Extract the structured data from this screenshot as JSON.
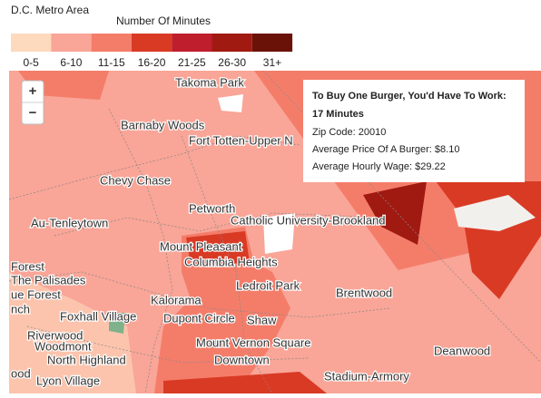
{
  "header": {
    "title": "D.C. Metro Area"
  },
  "legend": {
    "title": "Number Of Minutes",
    "bins": [
      {
        "label": "0-5",
        "color": "#fdd9bd"
      },
      {
        "label": "6-10",
        "color": "#f9a597"
      },
      {
        "label": "11-15",
        "color": "#f47d6a"
      },
      {
        "label": "16-20",
        "color": "#d93a24"
      },
      {
        "label": "21-25",
        "color": "#bf1e2d"
      },
      {
        "label": "26-30",
        "color": "#a11a12"
      },
      {
        "label": "31+",
        "color": "#6b1208"
      }
    ]
  },
  "zoom": {
    "in": "+",
    "out": "−"
  },
  "places": [
    "Takoma Park",
    "Barnaby Woods",
    "Fort Totten-Upper N",
    "Chevy Chase",
    "Petworth",
    "Au-Tenleytown",
    "Catholic University-Brookland",
    "Mount Pleasant",
    "Columbia Heights",
    "Forest",
    "The Palisades",
    "ue Forest",
    "Ledroit Park",
    "Brentwood",
    "Kalorama",
    "nch",
    "Foxhall Village",
    "Dupont Circle",
    "Shaw",
    "Riverwood",
    "Woodmont",
    "Mount Vernon Square",
    "Deanwood",
    "North Highland",
    "Downtown",
    "ood",
    "Lyon Village",
    "Stadium-Armory"
  ],
  "tooltip": {
    "title": "To Buy One Burger, You'd Have To Work:",
    "value": "17 Minutes",
    "lines": [
      "Zip Code: 20010",
      "Average Price Of A Burger: $8.10",
      "Average Hourly Wage: $29.22"
    ]
  }
}
